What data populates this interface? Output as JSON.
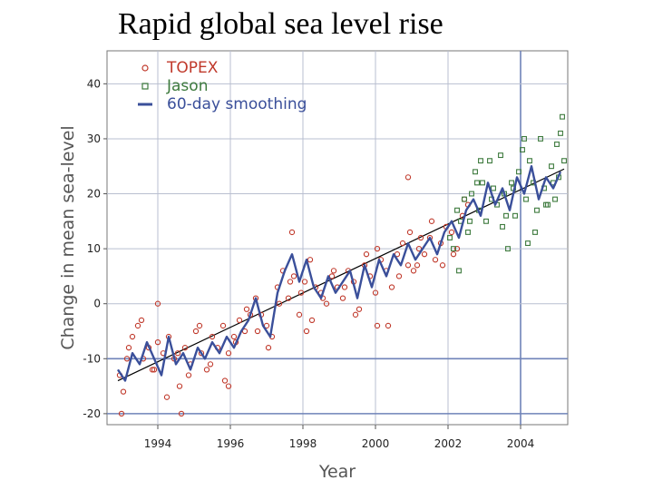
{
  "slide": {
    "title": "Rapid global sea level rise"
  },
  "chart_data": {
    "type": "scatter",
    "title": "",
    "xlabel": "Year",
    "ylabel": "Change in mean sea-level",
    "xlim": [
      1992.6,
      2005.3
    ],
    "ylim": [
      -22,
      46
    ],
    "x_ticks": [
      1994,
      1996,
      1998,
      2000,
      2002,
      2004
    ],
    "y_ticks": [
      -20,
      -10,
      0,
      10,
      20,
      30,
      40
    ],
    "grid": true,
    "legend_position": "top-left",
    "trend_line": {
      "x": [
        1992.9,
        2005.2
      ],
      "y": [
        -14.0,
        24.5
      ]
    },
    "highlight_lines": {
      "x": [
        2004
      ],
      "y": [
        -10,
        -20
      ]
    },
    "series": [
      {
        "name": "TOPEX",
        "marker": "circle",
        "color": "#c0392b",
        "x": [
          1992.95,
          1993.05,
          1993.15,
          1993.3,
          1993.45,
          1993.6,
          1993.75,
          1993.9,
          1994.0,
          1994.15,
          1994.3,
          1994.45,
          1994.6,
          1994.75,
          1994.9,
          1995.05,
          1995.2,
          1995.35,
          1995.5,
          1995.65,
          1995.8,
          1995.95,
          1996.1,
          1996.25,
          1996.4,
          1996.55,
          1996.7,
          1996.85,
          1997.0,
          1997.15,
          1997.3,
          1997.45,
          1997.6,
          1997.75,
          1997.9,
          1998.05,
          1998.2,
          1998.35,
          1998.5,
          1998.65,
          1998.8,
          1998.95,
          1999.1,
          1999.25,
          1999.4,
          1999.55,
          1999.7,
          1999.85,
          2000.0,
          2000.15,
          2000.3,
          2000.45,
          2000.6,
          2000.75,
          2000.9,
          2001.05,
          2001.2,
          2001.35,
          2001.5,
          2001.65,
          2001.8,
          2001.95,
          2002.1,
          2002.25,
          2002.4,
          2002.55,
          1993.2,
          1993.55,
          1993.85,
          1994.25,
          1994.55,
          1994.85,
          1995.15,
          1995.45,
          1995.85,
          1996.15,
          1996.45,
          1996.75,
          1997.05,
          1997.35,
          1997.65,
          1997.95,
          1998.25,
          1998.55,
          1998.85,
          1999.15,
          1999.45,
          1999.75,
          2000.05,
          2000.35,
          2000.65,
          2000.95,
          2001.25,
          2001.55,
          2001.85,
          2002.15,
          2002.45,
          1993.0,
          1994.65,
          1995.95,
          1997.7,
          1998.1,
          2000.05,
          2000.9,
          2001.15,
          1994.0
        ],
        "y": [
          -13,
          -16,
          -10,
          -6,
          -4,
          -10,
          -8,
          -12,
          -7,
          -9,
          -6,
          -10,
          -15,
          -8,
          -11,
          -5,
          -9,
          -12,
          -6,
          -8,
          -4,
          -9,
          -6,
          -3,
          -5,
          -2,
          1,
          -2,
          -4,
          -6,
          3,
          6,
          1,
          5,
          -2,
          4,
          8,
          3,
          2,
          0,
          5,
          3,
          1,
          6,
          4,
          -1,
          7,
          5,
          2,
          8,
          6,
          3,
          9,
          11,
          7,
          6,
          10,
          9,
          12,
          8,
          11,
          14,
          13,
          10,
          16,
          18,
          -8,
          -3,
          -12,
          -17,
          -9,
          -13,
          -4,
          -11,
          -14,
          -7,
          -1,
          -5,
          -8,
          0,
          4,
          2,
          -3,
          1,
          6,
          3,
          -2,
          9,
          10,
          -4,
          5,
          13,
          12,
          15,
          7,
          9,
          19,
          -20,
          -20,
          -15,
          13,
          -5,
          -4,
          23,
          7,
          0
        ],
        "note": ""
      },
      {
        "name": "Jason",
        "marker": "square",
        "color": "#3d7a3d",
        "x": [
          2002.05,
          2002.15,
          2002.25,
          2002.35,
          2002.45,
          2002.55,
          2002.65,
          2002.75,
          2002.85,
          2002.95,
          2003.05,
          2003.15,
          2003.25,
          2003.35,
          2003.45,
          2003.55,
          2003.65,
          2003.75,
          2003.85,
          2003.95,
          2004.05,
          2004.15,
          2004.25,
          2004.35,
          2004.45,
          2004.55,
          2004.65,
          2004.75,
          2004.85,
          2004.95,
          2005.05,
          2005.15,
          2002.3,
          2002.6,
          2002.9,
          2003.2,
          2003.5,
          2003.8,
          2004.1,
          2004.4,
          2004.7,
          2005.0,
          2005.2,
          2004.2,
          2003.6,
          2002.8,
          2004.9,
          2005.1
        ],
        "y": [
          12,
          10,
          17,
          15,
          19,
          13,
          20,
          24,
          17,
          22,
          15,
          26,
          21,
          18,
          27,
          20,
          10,
          22,
          16,
          24,
          28,
          19,
          26,
          22,
          17,
          30,
          21,
          18,
          25,
          19,
          23,
          34,
          6,
          15,
          26,
          19,
          14,
          21,
          30,
          13,
          18,
          29,
          26,
          11,
          16,
          22,
          22,
          31
        ]
      },
      {
        "name": "60-day smoothing",
        "marker": "line",
        "color": "#3a4f9a",
        "x": [
          1992.9,
          1993.1,
          1993.3,
          1993.5,
          1993.7,
          1993.9,
          1994.1,
          1994.3,
          1994.5,
          1994.7,
          1994.9,
          1995.1,
          1995.3,
          1995.5,
          1995.7,
          1995.9,
          1996.1,
          1996.3,
          1996.5,
          1996.7,
          1996.9,
          1997.1,
          1997.3,
          1997.5,
          1997.7,
          1997.9,
          1998.1,
          1998.3,
          1998.5,
          1998.7,
          1998.9,
          1999.1,
          1999.3,
          1999.5,
          1999.7,
          1999.9,
          2000.1,
          2000.3,
          2000.5,
          2000.7,
          2000.9,
          2001.1,
          2001.3,
          2001.5,
          2001.7,
          2001.9,
          2002.1,
          2002.3,
          2002.5,
          2002.7,
          2002.9,
          2003.1,
          2003.3,
          2003.5,
          2003.7,
          2003.9,
          2004.1,
          2004.3,
          2004.5,
          2004.7,
          2004.9,
          2005.1
        ],
        "y": [
          -12,
          -14,
          -9,
          -11,
          -7,
          -10,
          -13,
          -6,
          -11,
          -9,
          -12,
          -8,
          -10,
          -7,
          -9,
          -6,
          -8,
          -5,
          -3,
          1,
          -4,
          -6,
          2,
          6,
          9,
          4,
          8,
          3,
          1,
          5,
          2,
          4,
          6,
          1,
          7,
          3,
          8,
          5,
          9,
          7,
          11,
          8,
          10,
          12,
          9,
          13,
          15,
          12,
          17,
          19,
          16,
          22,
          18,
          21,
          17,
          23,
          20,
          25,
          19,
          23,
          21,
          24
        ]
      }
    ]
  }
}
